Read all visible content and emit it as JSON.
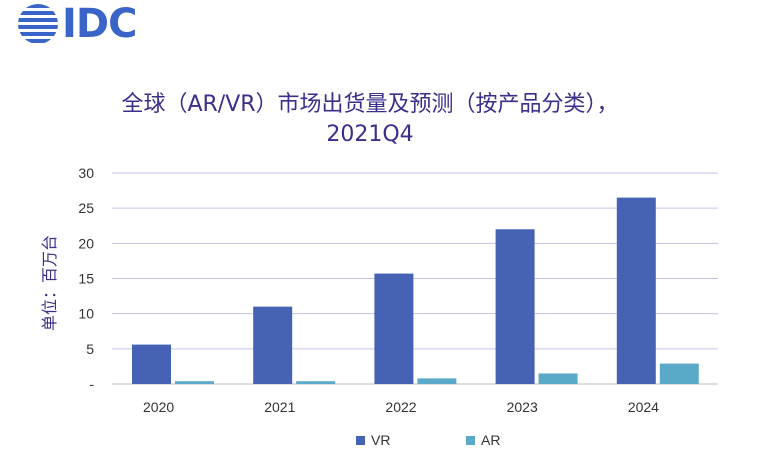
{
  "brand": {
    "logo_text": "IDC"
  },
  "colors": {
    "vr": "#4562b5",
    "ar": "#5aa9c9",
    "title": "#3a2f8a",
    "grid": "#c9c0e8"
  },
  "chart_data": {
    "type": "bar",
    "title_line1": "全球（AR/VR）市场出货量及预测（按产品分类），",
    "title_line2": "2021Q4",
    "ylabel": "单位：百万台",
    "xlabel": "",
    "categories": [
      "2020",
      "2021",
      "2022",
      "2023",
      "2024"
    ],
    "series": [
      {
        "name": "VR",
        "values": [
          5.6,
          11.0,
          15.7,
          22.0,
          26.5
        ]
      },
      {
        "name": "AR",
        "values": [
          0.4,
          0.4,
          0.8,
          1.5,
          2.9
        ]
      }
    ],
    "yticks": [
      "-",
      "5",
      "10",
      "15",
      "20",
      "25",
      "30"
    ],
    "ylim": [
      0,
      30
    ],
    "grid": true,
    "legend_position": "bottom"
  }
}
